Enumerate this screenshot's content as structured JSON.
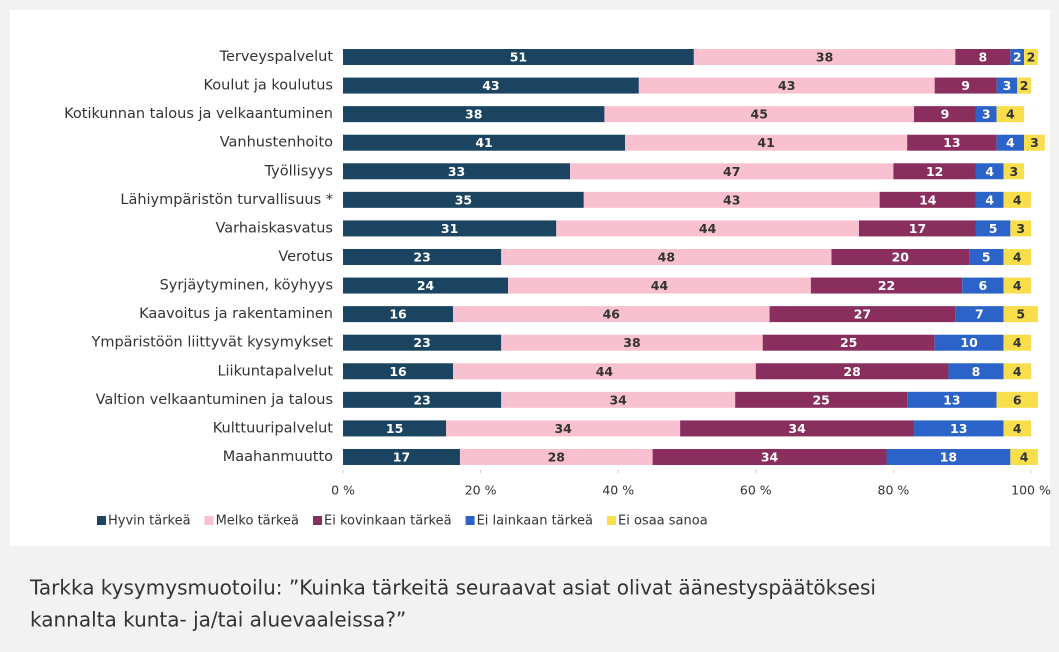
{
  "chart_data": {
    "type": "stacked-bar-horizontal",
    "categories": [
      "Terveyspalvelut",
      "Koulut ja koulutus",
      "Kotikunnan talous ja velkaantuminen",
      "Vanhustenhoito",
      "Työllisyys",
      "Lähiympäristön turvallisuus *",
      "Varhaiskasvatus",
      "Verotus",
      "Syrjäytyminen, köyhyys",
      "Kaavoitus ja rakentaminen",
      "Ympäristöön liittyvät kysymykset",
      "Liikuntapalvelut",
      "Valtion velkaantuminen ja talous",
      "Kulttuuripalvelut",
      "Maahanmuutto"
    ],
    "series": [
      {
        "name": "Hyvin tärkeä",
        "color": "#1b4461",
        "values": [
          51,
          43,
          38,
          41,
          33,
          35,
          31,
          23,
          24,
          16,
          23,
          16,
          23,
          15,
          17
        ]
      },
      {
        "name": "Melko tärkeä",
        "color": "#f9c1d0",
        "values": [
          38,
          43,
          45,
          41,
          47,
          43,
          44,
          48,
          44,
          46,
          38,
          44,
          34,
          34,
          28
        ]
      },
      {
        "name": "Ei kovinkaan tärkeä",
        "color": "#8a2f5d",
        "values": [
          8,
          9,
          9,
          13,
          12,
          14,
          17,
          20,
          22,
          27,
          25,
          28,
          25,
          34,
          34
        ]
      },
      {
        "name": "Ei lainkaan tärkeä",
        "color": "#2c63c8",
        "values": [
          2,
          3,
          3,
          4,
          4,
          4,
          5,
          5,
          6,
          7,
          10,
          8,
          13,
          13,
          18
        ]
      },
      {
        "name": "Ei osaa sanoa",
        "color": "#f8de4b",
        "values": [
          2,
          2,
          4,
          3,
          3,
          4,
          3,
          4,
          4,
          5,
          4,
          4,
          6,
          4,
          4
        ]
      }
    ],
    "xlim": [
      0,
      100
    ],
    "xticks": [
      {
        "value": 0,
        "label": "0 %"
      },
      {
        "value": 20,
        "label": "20 %"
      },
      {
        "value": 40,
        "label": "40 %"
      },
      {
        "value": 60,
        "label": "60 %"
      },
      {
        "value": 80,
        "label": "80 %"
      },
      {
        "value": 100,
        "label": "100 %"
      }
    ],
    "legend": "bottom-left"
  },
  "caption": [
    "Tarkka kysymysmuotoilu: ”Kuinka tärkeitä seuraavat asiat olivat äänestyspäätöksesi",
    "kannalta kunta- ja/tai aluevaaleissa?”"
  ]
}
